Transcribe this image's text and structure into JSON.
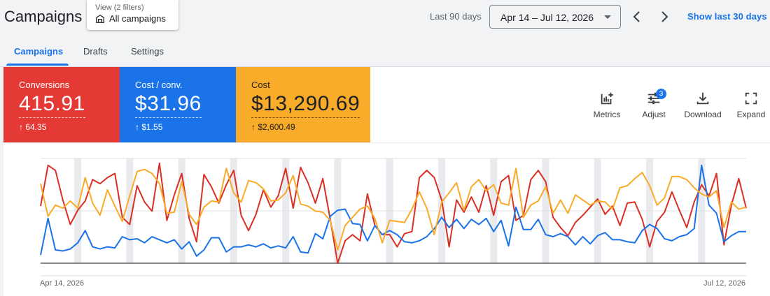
{
  "header": {
    "title": "Campaigns",
    "view_sub": "View (2 filters)",
    "view_main": "All campaigns",
    "period_label": "Last 90 days",
    "date_range": "Apr 14 – Jul 12, 2026",
    "show_last": "Show last 30 days"
  },
  "tabs": [
    {
      "label": "Campaigns",
      "active": true
    },
    {
      "label": "Drafts",
      "active": false
    },
    {
      "label": "Settings",
      "active": false
    }
  ],
  "metrics": [
    {
      "label": "Conversions",
      "value": "415.91",
      "delta": "↑ 64.35",
      "color": "#e53935"
    },
    {
      "label": "Cost / conv.",
      "value": "$31.96",
      "delta": "↑ $1.55",
      "color": "#1a73e8"
    },
    {
      "label": "Cost",
      "value": "$13,290.69",
      "delta": "↑ $2,600.49",
      "color": "#f9ab2a"
    }
  ],
  "tools": {
    "metrics": "Metrics",
    "adjust": "Adjust",
    "adjust_badge": "3",
    "download": "Download",
    "expand": "Expand"
  },
  "chart_data": {
    "type": "line",
    "x_start_label": "Apr 14, 2026",
    "x_end_label": "Jul 12, 2026",
    "x_range": [
      "Apr 14, 2026",
      "Jul 12, 2026"
    ],
    "y_range": [
      0,
      100
    ],
    "grid": true,
    "weekend_shading": true,
    "series": [
      {
        "color": "#d93025",
        "values": [
          56,
          96,
          91,
          62,
          38,
          52,
          61,
          82,
          78,
          84,
          88,
          45,
          38,
          76,
          60,
          51,
          98,
          42,
          67,
          88,
          44,
          21,
          87,
          75,
          59,
          77,
          91,
          47,
          32,
          48,
          72,
          55,
          66,
          93,
          54,
          94,
          79,
          59,
          83,
          43,
          0,
          22,
          28,
          22,
          68,
          37,
          28,
          28,
          16,
          29,
          31,
          84,
          91,
          84,
          62,
          16,
          62,
          50,
          65,
          50,
          76,
          47,
          80,
          86,
          42,
          47,
          82,
          91,
          80,
          45,
          35,
          27,
          40,
          47,
          55,
          63,
          48,
          56,
          37,
          59,
          60,
          43,
          16,
          41,
          50,
          70,
          52,
          35,
          60,
          77,
          66,
          88,
          18,
          57,
          83,
          54
        ]
      },
      {
        "color": "#1a73e8",
        "values": [
          8,
          44,
          13,
          12,
          14,
          20,
          32,
          16,
          14,
          16,
          15,
          26,
          23,
          24,
          20,
          26,
          23,
          20,
          23,
          14,
          21,
          7,
          13,
          25,
          25,
          11,
          16,
          16,
          18,
          16,
          19,
          15,
          17,
          15,
          26,
          11,
          10,
          29,
          24,
          46,
          52,
          53,
          39,
          38,
          22,
          37,
          28,
          32,
          28,
          21,
          20,
          22,
          26,
          34,
          45,
          35,
          43,
          34,
          43,
          38,
          44,
          31,
          42,
          17,
          55,
          33,
          33,
          43,
          28,
          26,
          29,
          26,
          18,
          26,
          19,
          27,
          30,
          23,
          23,
          21,
          20,
          32,
          38,
          34,
          24,
          22,
          26,
          28,
          34,
          96,
          57,
          49,
          21,
          27,
          31,
          31
        ]
      },
      {
        "color": "#f9ab2a",
        "values": [
          78,
          46,
          57,
          54,
          61,
          54,
          84,
          59,
          47,
          72,
          56,
          41,
          66,
          90,
          92,
          88,
          78,
          49,
          50,
          80,
          48,
          38,
          55,
          61,
          60,
          93,
          69,
          60,
          81,
          79,
          73,
          61,
          62,
          69,
          86,
          58,
          56,
          51,
          50,
          42,
          13,
          37,
          45,
          53,
          56,
          44,
          20,
          42,
          41,
          40,
          53,
          70,
          54,
          28,
          60,
          69,
          79,
          52,
          75,
          82,
          71,
          77,
          59,
          57,
          93,
          45,
          57,
          61,
          75,
          49,
          62,
          49,
          67,
          62,
          57,
          61,
          60,
          53,
          74,
          76,
          83,
          89,
          76,
          57,
          64,
          85,
          85,
          82,
          74,
          68,
          65,
          71,
          35,
          60,
          53,
          55
        ]
      }
    ]
  }
}
